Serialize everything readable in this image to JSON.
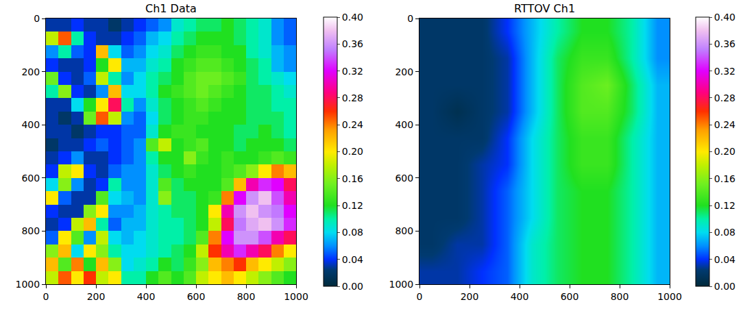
{
  "chart_data": [
    {
      "type": "heatmap",
      "title": "Ch1 Data",
      "x": [
        25,
        75,
        125,
        175,
        225,
        275,
        325,
        375,
        425,
        475,
        525,
        575,
        625,
        675,
        725,
        775,
        825,
        875,
        925,
        975
      ],
      "y": [
        25,
        75,
        125,
        175,
        225,
        275,
        325,
        375,
        425,
        475,
        525,
        575,
        625,
        675,
        725,
        775,
        825,
        875,
        925,
        975
      ],
      "cells": [
        [
          0.03,
          0.03,
          0.04,
          0.03,
          0.03,
          0.02,
          0.03,
          0.04,
          0.05,
          0.06,
          0.09,
          0.1,
          0.11,
          0.11,
          0.12,
          0.11,
          0.1,
          0.09,
          0.06,
          0.05
        ],
        [
          0.18,
          0.25,
          0.1,
          0.04,
          0.03,
          0.03,
          0.04,
          0.05,
          0.07,
          0.08,
          0.1,
          0.11,
          0.12,
          0.12,
          0.12,
          0.11,
          0.1,
          0.09,
          0.06,
          0.05
        ],
        [
          0.06,
          0.1,
          0.05,
          0.04,
          0.22,
          0.08,
          0.05,
          0.06,
          0.08,
          0.09,
          0.11,
          0.12,
          0.13,
          0.13,
          0.12,
          0.12,
          0.1,
          0.09,
          0.07,
          0.06
        ],
        [
          0.04,
          0.03,
          0.03,
          0.04,
          0.12,
          0.2,
          0.07,
          0.07,
          0.09,
          0.1,
          0.12,
          0.13,
          0.14,
          0.14,
          0.13,
          0.12,
          0.11,
          0.1,
          0.07,
          0.06
        ],
        [
          0.15,
          0.04,
          0.03,
          0.05,
          0.18,
          0.1,
          0.06,
          0.08,
          0.1,
          0.11,
          0.12,
          0.14,
          0.15,
          0.15,
          0.14,
          0.13,
          0.11,
          0.1,
          0.09,
          0.08
        ],
        [
          0.1,
          0.16,
          0.04,
          0.03,
          0.06,
          0.22,
          0.08,
          0.08,
          0.1,
          0.12,
          0.13,
          0.14,
          0.15,
          0.14,
          0.13,
          0.12,
          0.11,
          0.11,
          0.1,
          0.09
        ],
        [
          0.03,
          0.03,
          0.08,
          0.12,
          0.2,
          0.28,
          0.1,
          0.06,
          0.09,
          0.11,
          0.12,
          0.13,
          0.14,
          0.13,
          0.12,
          0.12,
          0.11,
          0.11,
          0.1,
          0.1
        ],
        [
          0.03,
          0.02,
          0.03,
          0.15,
          0.25,
          0.18,
          0.06,
          0.05,
          0.08,
          0.11,
          0.12,
          0.13,
          0.13,
          0.12,
          0.12,
          0.12,
          0.11,
          0.11,
          0.11,
          0.1
        ],
        [
          0.03,
          0.03,
          0.02,
          0.03,
          0.04,
          0.04,
          0.05,
          0.05,
          0.09,
          0.12,
          0.13,
          0.13,
          0.12,
          0.12,
          0.12,
          0.11,
          0.11,
          0.12,
          0.11,
          0.1
        ],
        [
          0.02,
          0.03,
          0.03,
          0.04,
          0.05,
          0.04,
          0.05,
          0.06,
          0.14,
          0.18,
          0.12,
          0.13,
          0.14,
          0.12,
          0.12,
          0.11,
          0.12,
          0.12,
          0.12,
          0.11
        ],
        [
          0.03,
          0.04,
          0.06,
          0.03,
          0.03,
          0.04,
          0.05,
          0.06,
          0.1,
          0.12,
          0.12,
          0.16,
          0.13,
          0.12,
          0.13,
          0.12,
          0.12,
          0.13,
          0.14,
          0.13
        ],
        [
          0.04,
          0.18,
          0.2,
          0.04,
          0.03,
          0.05,
          0.06,
          0.06,
          0.09,
          0.11,
          0.12,
          0.13,
          0.12,
          0.12,
          0.13,
          0.14,
          0.16,
          0.2,
          0.24,
          0.22
        ],
        [
          0.08,
          0.16,
          0.06,
          0.03,
          0.04,
          0.1,
          0.06,
          0.06,
          0.09,
          0.14,
          0.11,
          0.12,
          0.12,
          0.12,
          0.14,
          0.22,
          0.3,
          0.33,
          0.32,
          0.28
        ],
        [
          0.2,
          0.05,
          0.03,
          0.03,
          0.14,
          0.08,
          0.07,
          0.06,
          0.09,
          0.16,
          0.11,
          0.11,
          0.12,
          0.13,
          0.24,
          0.32,
          0.36,
          0.38,
          0.34,
          0.3
        ],
        [
          0.04,
          0.03,
          0.03,
          0.16,
          0.2,
          0.06,
          0.06,
          0.07,
          0.09,
          0.1,
          0.11,
          0.11,
          0.12,
          0.2,
          0.3,
          0.36,
          0.38,
          0.36,
          0.35,
          0.32
        ],
        [
          0.03,
          0.04,
          0.18,
          0.22,
          0.1,
          0.05,
          0.07,
          0.07,
          0.09,
          0.1,
          0.1,
          0.11,
          0.12,
          0.18,
          0.28,
          0.35,
          0.37,
          0.38,
          0.36,
          0.33
        ],
        [
          0.05,
          0.2,
          0.14,
          0.06,
          0.18,
          0.08,
          0.07,
          0.08,
          0.09,
          0.1,
          0.1,
          0.11,
          0.14,
          0.24,
          0.32,
          0.36,
          0.36,
          0.34,
          0.3,
          0.28
        ],
        [
          0.16,
          0.22,
          0.08,
          0.2,
          0.16,
          0.1,
          0.08,
          0.08,
          0.09,
          0.1,
          0.11,
          0.12,
          0.18,
          0.26,
          0.3,
          0.33,
          0.3,
          0.28,
          0.24,
          0.2
        ],
        [
          0.22,
          0.14,
          0.24,
          0.12,
          0.22,
          0.16,
          0.08,
          0.09,
          0.1,
          0.12,
          0.11,
          0.13,
          0.16,
          0.22,
          0.24,
          0.26,
          0.22,
          0.2,
          0.18,
          0.16
        ],
        [
          0.18,
          0.25,
          0.2,
          0.26,
          0.18,
          0.2,
          0.1,
          0.1,
          0.12,
          0.14,
          0.12,
          0.14,
          0.18,
          0.2,
          0.22,
          0.2,
          0.18,
          0.16,
          0.14,
          0.12
        ]
      ],
      "xlim": [
        0,
        1000
      ],
      "xticks": [
        0,
        200,
        400,
        600,
        800,
        1000
      ],
      "ylim": [
        1000,
        0
      ],
      "yticks": [
        0,
        200,
        400,
        600,
        800,
        1000
      ],
      "colorbar": {
        "range": [
          0,
          0.4
        ],
        "ticks": [
          {
            "value": 0,
            "label": "0.00"
          },
          0.04,
          0.08,
          0.12,
          0.16,
          {
            "value": 0.2,
            "label": "0.20"
          },
          0.24,
          0.28,
          0.32,
          0.36,
          {
            "value": 0.4,
            "label": "0.40"
          }
        ]
      }
    },
    {
      "type": "heatmap",
      "title": "RTTOV Ch1",
      "x": [
        50,
        150,
        250,
        350,
        450,
        550,
        650,
        750,
        850,
        950
      ],
      "y": [
        50,
        150,
        250,
        350,
        450,
        550,
        650,
        750,
        850,
        950
      ],
      "cells": [
        [
          0.02,
          0.02,
          0.02,
          0.04,
          0.07,
          0.1,
          0.12,
          0.12,
          0.1,
          0.06
        ],
        [
          0.02,
          0.02,
          0.02,
          0.03,
          0.07,
          0.11,
          0.13,
          0.13,
          0.1,
          0.06
        ],
        [
          0.02,
          0.02,
          0.02,
          0.03,
          0.07,
          0.11,
          0.14,
          0.15,
          0.11,
          0.07
        ],
        [
          0.02,
          0.01,
          0.02,
          0.03,
          0.07,
          0.11,
          0.14,
          0.14,
          0.11,
          0.07
        ],
        [
          0.02,
          0.02,
          0.02,
          0.04,
          0.08,
          0.11,
          0.13,
          0.13,
          0.1,
          0.07
        ],
        [
          0.02,
          0.02,
          0.03,
          0.04,
          0.08,
          0.11,
          0.13,
          0.13,
          0.1,
          0.07
        ],
        [
          0.02,
          0.02,
          0.03,
          0.05,
          0.08,
          0.11,
          0.12,
          0.12,
          0.1,
          0.07
        ],
        [
          0.02,
          0.02,
          0.03,
          0.05,
          0.08,
          0.11,
          0.12,
          0.12,
          0.1,
          0.07
        ],
        [
          0.02,
          0.03,
          0.03,
          0.05,
          0.09,
          0.11,
          0.12,
          0.12,
          0.1,
          0.07
        ],
        [
          0.03,
          0.03,
          0.04,
          0.05,
          0.09,
          0.11,
          0.12,
          0.12,
          0.1,
          0.07
        ]
      ],
      "xlim": [
        0,
        1000
      ],
      "xticks": [
        0,
        200,
        400,
        600,
        800,
        1000
      ],
      "ylim": [
        1000,
        0
      ],
      "yticks": [
        0,
        200,
        400,
        600,
        800,
        1000
      ],
      "colorbar": {
        "range": [
          0,
          0.4
        ],
        "ticks": [
          {
            "value": 0,
            "label": "0.00"
          },
          0.04,
          0.08,
          0.12,
          0.16,
          {
            "value": 0.2,
            "label": "0.20"
          },
          0.24,
          0.28,
          0.32,
          0.36,
          {
            "value": 0.4,
            "label": "0.40"
          }
        ]
      }
    }
  ]
}
